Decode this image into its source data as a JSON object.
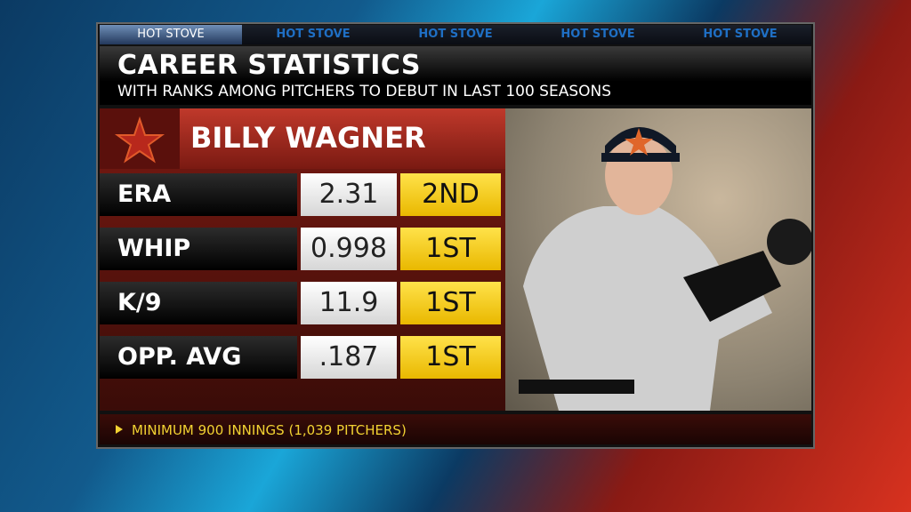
{
  "tabs": [
    "HOT STOVE",
    "HOT STOVE",
    "HOT STOVE",
    "HOT STOVE",
    "HOT STOVE"
  ],
  "header": {
    "title": "CAREER STATISTICS",
    "subtitle": "WITH RANKS AMONG PITCHERS TO DEBUT IN LAST 100 SEASONS"
  },
  "player": {
    "name": "BILLY WAGNER"
  },
  "stats": [
    {
      "label": "ERA",
      "value": "2.31",
      "rank": "2ND"
    },
    {
      "label": "WHIP",
      "value": "0.998",
      "rank": "1ST"
    },
    {
      "label": "K/9",
      "value": "11.9",
      "rank": "1ST"
    },
    {
      "label": "OPP. AVG",
      "value": ".187",
      "rank": "1ST"
    }
  ],
  "footnote": "MINIMUM 900 INNINGS (1,039 PITCHERS)"
}
